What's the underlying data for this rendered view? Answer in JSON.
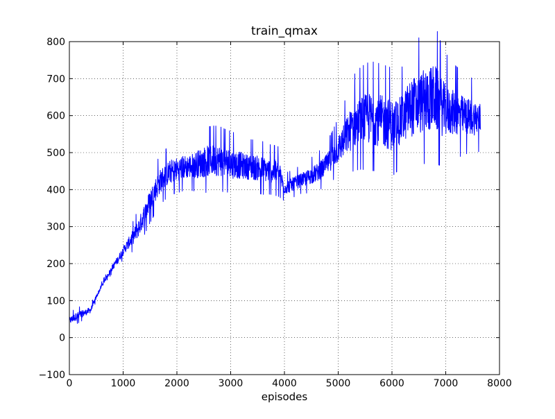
{
  "chart_data": {
    "type": "line",
    "title": "train_qmax",
    "xlabel": "episodes",
    "ylabel": "",
    "xlim": [
      0,
      8000
    ],
    "ylim": [
      -100,
      800
    ],
    "xticks": [
      0,
      1000,
      2000,
      3000,
      4000,
      5000,
      6000,
      7000,
      8000
    ],
    "yticks": [
      -100,
      0,
      100,
      200,
      300,
      400,
      500,
      600,
      700,
      800
    ],
    "x_tick_labels": [
      "0",
      "1000",
      "2000",
      "3000",
      "4000",
      "5000",
      "6000",
      "7000",
      "8000"
    ],
    "y_tick_labels": [
      "−100",
      "0",
      "100",
      "200",
      "300",
      "400",
      "500",
      "600",
      "700",
      "800"
    ],
    "grid": true,
    "line_color": "#0000ff",
    "series": [
      {
        "x": [
          0,
          100,
          200,
          300,
          400,
          500,
          600,
          700,
          800,
          900,
          1000,
          1100,
          1200,
          1300,
          1400,
          1500,
          1600,
          1700,
          1800,
          1900,
          2000,
          2100,
          2200,
          2300,
          2400,
          2500,
          2600,
          2700,
          2800,
          2900,
          3000,
          3100,
          3200,
          3300,
          3400,
          3500,
          3600,
          3700,
          3800,
          3900,
          4000,
          4100,
          4200,
          4300,
          4400,
          4500,
          4600,
          4700,
          4800,
          4900,
          5000,
          5100,
          5200,
          5300,
          5400,
          5500,
          5600,
          5700,
          5800,
          5900,
          6000,
          6100,
          6200,
          6300,
          6400,
          6500,
          6600,
          6700,
          6800,
          6900,
          7000,
          7100,
          7200,
          7300,
          7400,
          7500,
          7600,
          7650
        ],
        "y": [
          45,
          55,
          62,
          68,
          75,
          110,
          140,
          165,
          190,
          210,
          235,
          255,
          275,
          300,
          335,
          370,
          400,
          425,
          440,
          450,
          455,
          460,
          462,
          465,
          470,
          475,
          478,
          480,
          478,
          475,
          470,
          468,
          465,
          462,
          460,
          458,
          455,
          452,
          450,
          445,
          405,
          410,
          418,
          425,
          430,
          438,
          445,
          455,
          470,
          490,
          510,
          530,
          555,
          575,
          585,
          590,
          592,
          590,
          585,
          580,
          575,
          580,
          590,
          615,
          625,
          630,
          640,
          645,
          650,
          625,
          615,
          610,
          605,
          600,
          598,
          595,
          593,
          590
        ],
        "spread": [
          10,
          10,
          10,
          8,
          8,
          5,
          5,
          5,
          8,
          10,
          12,
          15,
          20,
          25,
          28,
          30,
          32,
          32,
          32,
          32,
          32,
          32,
          32,
          34,
          38,
          42,
          42,
          42,
          42,
          40,
          40,
          38,
          36,
          34,
          34,
          34,
          34,
          32,
          32,
          32,
          18,
          18,
          18,
          18,
          20,
          22,
          24,
          26,
          28,
          32,
          38,
          45,
          55,
          62,
          65,
          68,
          70,
          70,
          70,
          70,
          70,
          65,
          65,
          75,
          80,
          82,
          85,
          88,
          90,
          80,
          70,
          62,
          58,
          55,
          50,
          48,
          45,
          45
        ]
      }
    ]
  }
}
